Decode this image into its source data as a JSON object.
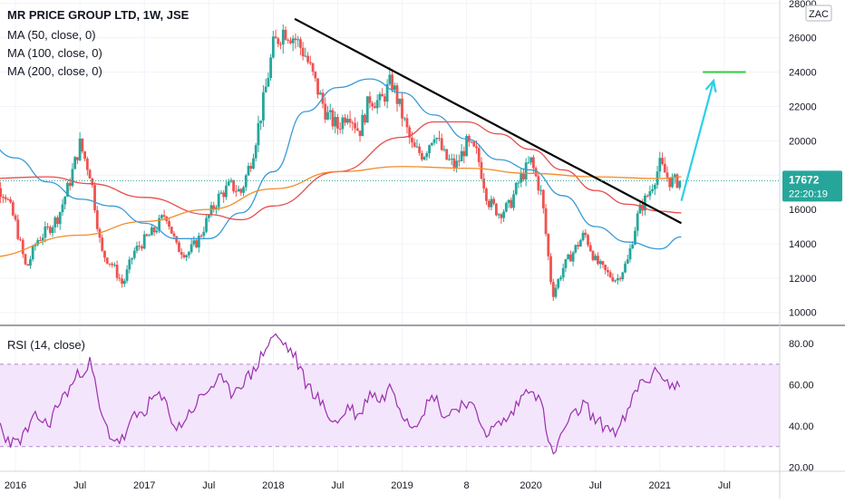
{
  "chart_data": [
    {
      "type": "candlestick",
      "title": "MR PRICE GROUP LTD, 1W, JSE",
      "studies": [
        "MA (50, close, 0)",
        "MA (100, close, 0)",
        "MA (200, close, 0)"
      ],
      "currency_label": "ZAC",
      "y_ticks": [
        10000,
        12000,
        14000,
        16000,
        18000,
        20000,
        22000,
        24000,
        26000,
        28000
      ],
      "ylim": [
        9300,
        28200
      ],
      "x_tick_labels": [
        "2016",
        "Jul",
        "2017",
        "Jul",
        "2018",
        "Jul",
        "2019",
        "8",
        "2020",
        "Jul",
        "2021",
        "Jul"
      ],
      "last_price": {
        "value": 17672,
        "label": "17672",
        "countdown": "22:20:19"
      },
      "close_path": [
        [
          "2015-10",
          17600
        ],
        [
          "2015-12",
          17000
        ],
        [
          "2016-01",
          15200
        ],
        [
          "2016-02",
          12500
        ],
        [
          "2016-03",
          14200
        ],
        [
          "2016-04",
          14800
        ],
        [
          "2016-05",
          15600
        ],
        [
          "2016-06",
          17500
        ],
        [
          "2016-07",
          19800
        ],
        [
          "2016-08",
          18000
        ],
        [
          "2016-09",
          13500
        ],
        [
          "2016-10",
          12800
        ],
        [
          "2016-11",
          11600
        ],
        [
          "2016-12",
          13500
        ],
        [
          "2017-01",
          14200
        ],
        [
          "2017-02",
          14800
        ],
        [
          "2017-03",
          15800
        ],
        [
          "2017-04",
          13800
        ],
        [
          "2017-05",
          13400
        ],
        [
          "2017-06",
          14200
        ],
        [
          "2017-07",
          15600
        ],
        [
          "2017-08",
          16800
        ],
        [
          "2017-09",
          17400
        ],
        [
          "2017-10",
          17000
        ],
        [
          "2017-11",
          19000
        ],
        [
          "2017-12",
          22000
        ],
        [
          "2018-01",
          25500
        ],
        [
          "2018-02",
          26500
        ],
        [
          "2018-03",
          26000
        ],
        [
          "2018-04",
          25000
        ],
        [
          "2018-05",
          23200
        ],
        [
          "2018-06",
          21500
        ],
        [
          "2018-07",
          20800
        ],
        [
          "2018-08",
          21800
        ],
        [
          "2018-09",
          20500
        ],
        [
          "2018-10",
          22500
        ],
        [
          "2018-11",
          22200
        ],
        [
          "2018-12",
          23500
        ],
        [
          "2019-01",
          21500
        ],
        [
          "2019-02",
          19500
        ],
        [
          "2019-03",
          19200
        ],
        [
          "2019-04",
          20500
        ],
        [
          "2019-05",
          19000
        ],
        [
          "2019-06",
          18500
        ],
        [
          "2019-07",
          19800
        ],
        [
          "2019-08",
          19200
        ],
        [
          "2019-09",
          16500
        ],
        [
          "2019-10",
          15800
        ],
        [
          "2019-11",
          16200
        ],
        [
          "2019-12",
          17800
        ],
        [
          "2020-01",
          18800
        ],
        [
          "2020-02",
          16800
        ],
        [
          "2020-03",
          11000
        ],
        [
          "2020-04",
          12600
        ],
        [
          "2020-05",
          13600
        ],
        [
          "2020-06",
          14600
        ],
        [
          "2020-07",
          13000
        ],
        [
          "2020-08",
          12300
        ],
        [
          "2020-09",
          11900
        ],
        [
          "2020-10",
          13000
        ],
        [
          "2020-11",
          15800
        ],
        [
          "2020-12",
          17000
        ],
        [
          "2021-01",
          18600
        ],
        [
          "2021-02",
          17600
        ],
        [
          "2021-03",
          17672
        ]
      ],
      "moving_averages": [
        {
          "name": "MA (50, close, 0)",
          "color": "#3a9ad9",
          "points": [
            [
              "2015-10",
              20000
            ],
            [
              "2016-01",
              19000
            ],
            [
              "2016-04",
              17600
            ],
            [
              "2016-07",
              16600
            ],
            [
              "2016-10",
              16200
            ],
            [
              "2017-01",
              15200
            ],
            [
              "2017-04",
              14300
            ],
            [
              "2017-07",
              14300
            ],
            [
              "2017-10",
              15800
            ],
            [
              "2018-01",
              18200
            ],
            [
              "2018-04",
              21700
            ],
            [
              "2018-07",
              23100
            ],
            [
              "2018-10",
              23600
            ],
            [
              "2019-01",
              22800
            ],
            [
              "2019-04",
              21500
            ],
            [
              "2019-07",
              20100
            ],
            [
              "2019-10",
              18900
            ],
            [
              "2020-01",
              18300
            ],
            [
              "2020-04",
              16800
            ],
            [
              "2020-07",
              15000
            ],
            [
              "2020-10",
              14100
            ],
            [
              "2021-01",
              13700
            ],
            [
              "2021-03",
              14400
            ]
          ]
        },
        {
          "name": "MA (100, close, 0)",
          "color": "#e94c4c",
          "points": [
            [
              "2015-10",
              17800
            ],
            [
              "2016-04",
              17900
            ],
            [
              "2016-08",
              17500
            ],
            [
              "2017-01",
              16700
            ],
            [
              "2017-07",
              15700
            ],
            [
              "2017-10",
              15400
            ],
            [
              "2018-01",
              16200
            ],
            [
              "2018-07",
              18200
            ],
            [
              "2019-01",
              20200
            ],
            [
              "2019-04",
              21100
            ],
            [
              "2019-07",
              21100
            ],
            [
              "2019-10",
              20400
            ],
            [
              "2020-01",
              19500
            ],
            [
              "2020-04",
              18300
            ],
            [
              "2020-07",
              17100
            ],
            [
              "2020-10",
              16300
            ],
            [
              "2021-01",
              15900
            ],
            [
              "2021-03",
              15800
            ]
          ]
        },
        {
          "name": "MA (200, close, 0)",
          "color": "#f28c28",
          "points": [
            [
              "2015-10",
              13200
            ],
            [
              "2016-07",
              14500
            ],
            [
              "2017-01",
              15300
            ],
            [
              "2017-07",
              16000
            ],
            [
              "2018-01",
              17200
            ],
            [
              "2018-07",
              18200
            ],
            [
              "2019-01",
              18500
            ],
            [
              "2019-07",
              18400
            ],
            [
              "2020-01",
              18100
            ],
            [
              "2020-07",
              17900
            ],
            [
              "2021-01",
              17800
            ],
            [
              "2021-03",
              17900
            ]
          ]
        }
      ],
      "trendline": {
        "color": "#000000",
        "from": [
          "2018-03",
          27100
        ],
        "to": [
          "2021-03",
          15200
        ]
      },
      "projection_arrow": {
        "color": "#29d0e8",
        "from": [
          "2021-03",
          16500
        ],
        "to": [
          "2021-06",
          23500
        ]
      },
      "target_line": {
        "color": "#2ecc40",
        "value": 24000,
        "from": "2021-05",
        "to": "2021-09"
      }
    },
    {
      "type": "line",
      "title": "RSI (14, close)",
      "color": "#9b2fae",
      "y_ticks": [
        20,
        40,
        60,
        80
      ],
      "y_tick_labels": [
        "20.00",
        "40.00",
        "60.00",
        "80.00"
      ],
      "ylim": [
        18,
        88
      ],
      "band": [
        30,
        70
      ],
      "points": [
        [
          "2015-10",
          42
        ],
        [
          "2015-11",
          47
        ],
        [
          "2015-12",
          35
        ],
        [
          "2016-01",
          31
        ],
        [
          "2016-02",
          37
        ],
        [
          "2016-03",
          45
        ],
        [
          "2016-04",
          40
        ],
        [
          "2016-05",
          51
        ],
        [
          "2016-06",
          58
        ],
        [
          "2016-07",
          66
        ],
        [
          "2016-08",
          71
        ],
        [
          "2016-09",
          44
        ],
        [
          "2016-10",
          34
        ],
        [
          "2016-11",
          33
        ],
        [
          "2016-12",
          44
        ],
        [
          "2017-01",
          47
        ],
        [
          "2017-02",
          55
        ],
        [
          "2017-03",
          51
        ],
        [
          "2017-04",
          38
        ],
        [
          "2017-05",
          45
        ],
        [
          "2017-06",
          52
        ],
        [
          "2017-07",
          58
        ],
        [
          "2017-08",
          63
        ],
        [
          "2017-09",
          56
        ],
        [
          "2017-10",
          61
        ],
        [
          "2017-11",
          65
        ],
        [
          "2017-12",
          75
        ],
        [
          "2018-01",
          84
        ],
        [
          "2018-02",
          80
        ],
        [
          "2018-03",
          74
        ],
        [
          "2018-04",
          61
        ],
        [
          "2018-05",
          55
        ],
        [
          "2018-06",
          46
        ],
        [
          "2018-07",
          41
        ],
        [
          "2018-08",
          50
        ],
        [
          "2018-09",
          44
        ],
        [
          "2018-10",
          57
        ],
        [
          "2018-11",
          52
        ],
        [
          "2018-12",
          60
        ],
        [
          "2019-01",
          47
        ],
        [
          "2019-02",
          40
        ],
        [
          "2019-03",
          48
        ],
        [
          "2019-04",
          55
        ],
        [
          "2019-05",
          44
        ],
        [
          "2019-06",
          49
        ],
        [
          "2019-07",
          52
        ],
        [
          "2019-08",
          45
        ],
        [
          "2019-09",
          36
        ],
        [
          "2019-10",
          41
        ],
        [
          "2019-11",
          44
        ],
        [
          "2019-12",
          53
        ],
        [
          "2020-01",
          60
        ],
        [
          "2020-02",
          50
        ],
        [
          "2020-03",
          24
        ],
        [
          "2020-04",
          38
        ],
        [
          "2020-05",
          45
        ],
        [
          "2020-06",
          51
        ],
        [
          "2020-07",
          42
        ],
        [
          "2020-08",
          40
        ],
        [
          "2020-09",
          37
        ],
        [
          "2020-10",
          46
        ],
        [
          "2020-11",
          60
        ],
        [
          "2020-12",
          63
        ],
        [
          "2021-01",
          67
        ],
        [
          "2021-02",
          59
        ],
        [
          "2021-03",
          60
        ]
      ]
    }
  ]
}
